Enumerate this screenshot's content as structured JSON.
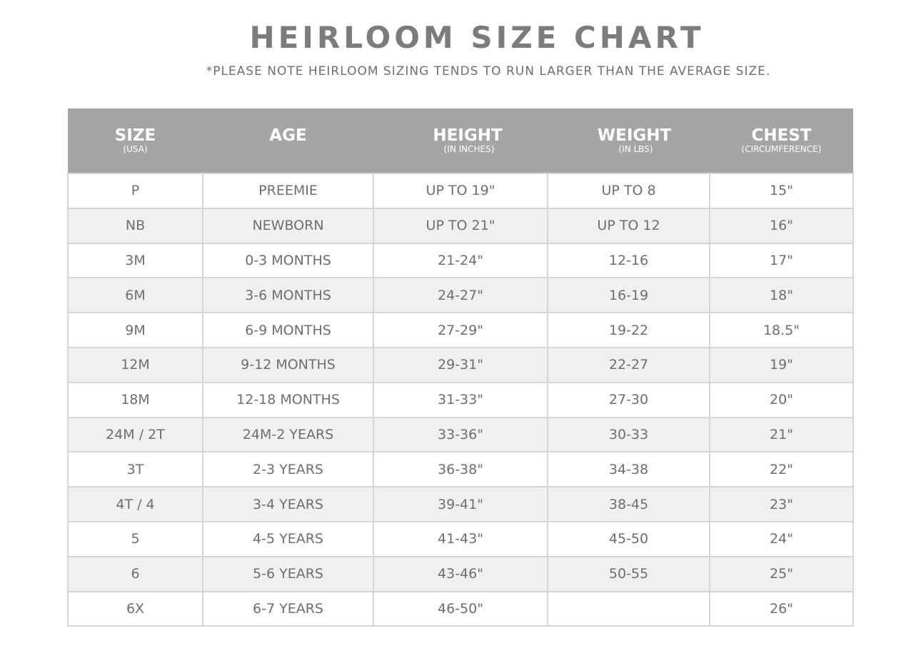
{
  "title": "HEIRLOOM SIZE CHART",
  "subtitle": "*PLEASE NOTE HEIRLOOM SIZING TENDS TO RUN LARGER THAN THE AVERAGE SIZE.",
  "colors": {
    "header_bg": "#a4a5a7",
    "alt_row": "#f0f0f2",
    "text": "#6d6e70"
  },
  "columns": [
    {
      "label": "SIZE",
      "sub": "(USA)"
    },
    {
      "label": "AGE",
      "sub": ""
    },
    {
      "label": "HEIGHT",
      "sub": "(IN INCHES)"
    },
    {
      "label": "WEIGHT",
      "sub": "(IN LBS)"
    },
    {
      "label": "CHEST",
      "sub": "(CIRCUMFERENCE)"
    }
  ],
  "rows": [
    [
      "P",
      "PREEMIE",
      "UP TO 19\"",
      "UP TO 8",
      "15\""
    ],
    [
      "NB",
      "NEWBORN",
      "UP TO 21\"",
      "UP TO 12",
      "16\""
    ],
    [
      "3M",
      "0-3 MONTHS",
      "21-24\"",
      "12-16",
      "17\""
    ],
    [
      "6M",
      "3-6 MONTHS",
      "24-27\"",
      "16-19",
      "18\""
    ],
    [
      "9M",
      "6-9 MONTHS",
      "27-29\"",
      "19-22",
      "18.5\""
    ],
    [
      "12M",
      "9-12 MONTHS",
      "29-31\"",
      "22-27",
      "19\""
    ],
    [
      "18M",
      "12-18 MONTHS",
      "31-33\"",
      "27-30",
      "20\""
    ],
    [
      "24M /  2T",
      "24M-2 YEARS",
      "33-36\"",
      "30-33",
      "21\""
    ],
    [
      "3T",
      "2-3 YEARS",
      "36-38\"",
      "34-38",
      "22\""
    ],
    [
      "4T / 4",
      "3-4 YEARS",
      "39-41\"",
      "38-45",
      "23\""
    ],
    [
      "5",
      "4-5 YEARS",
      "41-43\"",
      "45-50",
      "24\""
    ],
    [
      "6",
      "5-6 YEARS",
      "43-46\"",
      "50-55",
      "25\""
    ],
    [
      "6X",
      "6-7 YEARS",
      "46-50\"",
      "",
      "26\""
    ]
  ]
}
